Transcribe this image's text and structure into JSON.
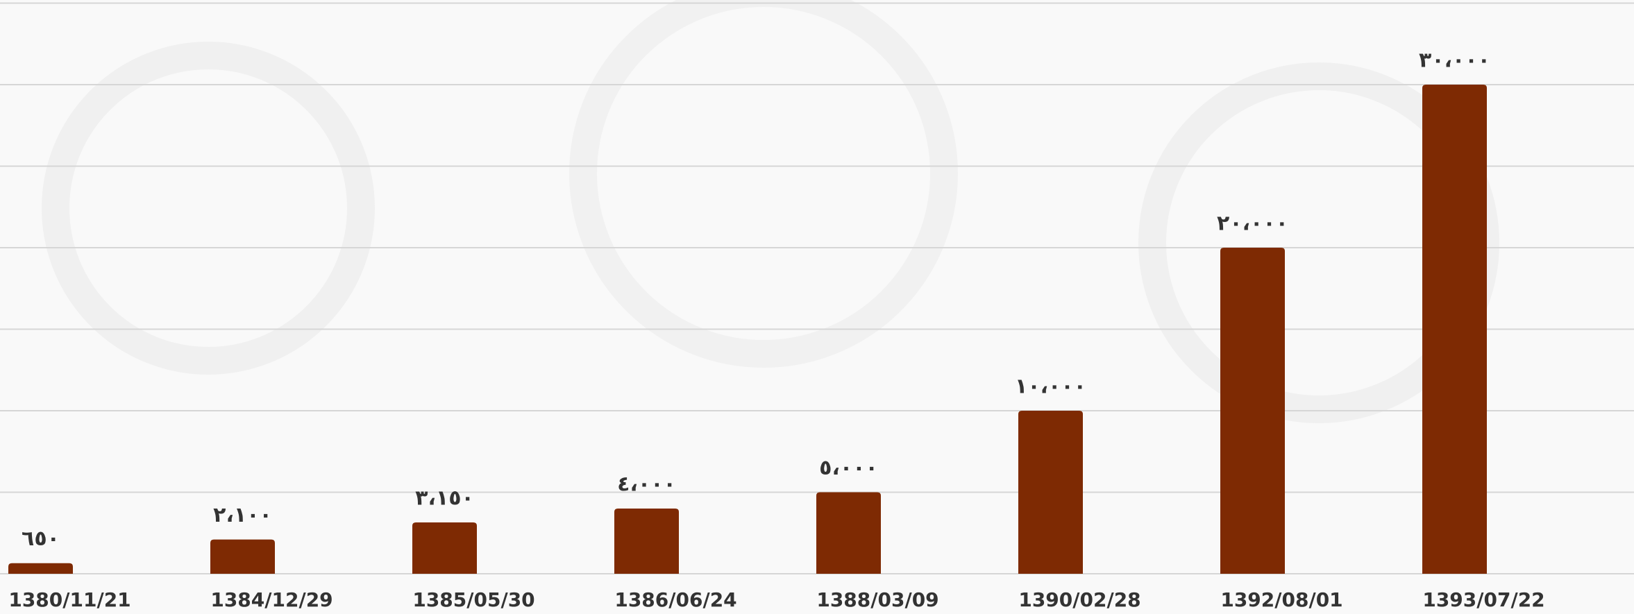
{
  "chart_data": {
    "type": "bar",
    "categories": [
      "1380/11/21",
      "1384/12/29",
      "1385/05/30",
      "1386/06/24",
      "1388/03/09",
      "1390/02/28",
      "1392/08/01",
      "1393/07/22"
    ],
    "values": [
      650,
      2100,
      3150,
      4000,
      5000,
      10000,
      20000,
      30000
    ],
    "value_labels": [
      "٦٥٠",
      "٢،١٠٠",
      "٣،١٥٠",
      "٤،٠٠٠",
      "٥،٠٠٠",
      "١٠،٠٠٠",
      "٢٠،٠٠٠",
      "٣٠،٠٠٠"
    ],
    "color": "#7e2a03",
    "ylim": [
      0,
      35000
    ],
    "yticks": [
      0,
      5000,
      10000,
      15000,
      20000,
      25000,
      30000,
      35000
    ],
    "grid": true
  }
}
